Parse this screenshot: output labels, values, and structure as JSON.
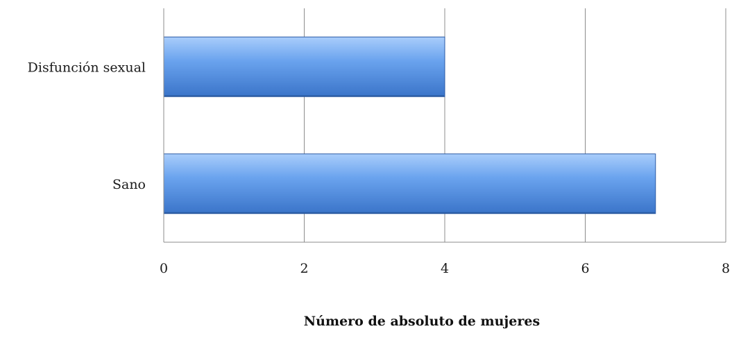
{
  "chart_data": {
    "type": "bar",
    "orientation": "horizontal",
    "categories": [
      "Disfunción sexual",
      "Sano"
    ],
    "values": [
      4,
      7
    ],
    "title": "",
    "xlabel": "Número de absoluto de mujeres",
    "ylabel": "",
    "xlim": [
      0,
      8
    ],
    "xticks": [
      0,
      2,
      4,
      6,
      8
    ],
    "tick_labels": [
      "0",
      "2",
      "4",
      "6",
      "8"
    ],
    "grid": true,
    "legend": "none",
    "colors": {
      "bar_light": "#a9cdfb",
      "bar_mid": "#6aa3ee",
      "bar_dark": "#3a74c9",
      "bar_edge": "#2b5aa6",
      "gridline": "#8c8c8c",
      "axis": "#8c8c8c"
    }
  }
}
